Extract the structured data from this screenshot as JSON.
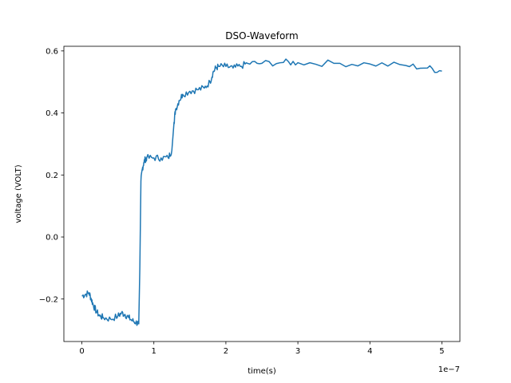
{
  "chart_data": {
    "type": "line",
    "title": "DSO-Waveform",
    "xlabel": "time(s)",
    "ylabel": "voltage (VOLT)",
    "x_offset_text": "1e−7",
    "xlim": [
      -2.5e-08,
      5.25e-07
    ],
    "ylim": [
      -0.337,
      0.615
    ],
    "xticks": [
      0,
      1e-07,
      2e-07,
      3e-07,
      4e-07,
      5e-07
    ],
    "xtick_labels": [
      "0",
      "1",
      "2",
      "3",
      "4",
      "5"
    ],
    "yticks": [
      -0.2,
      0.0,
      0.2,
      0.4,
      0.6
    ],
    "ytick_labels": [
      "−0.2",
      "0.0",
      "0.2",
      "0.4",
      "0.6"
    ],
    "grid": false,
    "series": [
      {
        "color": "#1f77b4",
        "x": [
          0,
          5e-09,
          1e-08,
          1.3e-08,
          1.6e-08,
          2e-08,
          2.5e-08,
          3e-08,
          4e-08,
          5e-08,
          5.5e-08,
          6e-08,
          6.5e-08,
          7e-08,
          7.5e-08,
          7.9e-08,
          8.05e-08,
          8.2e-08,
          8.4e-08,
          8.6e-08,
          8.8e-08,
          9e-08,
          1e-07,
          1.1e-07,
          1.2e-07,
          1.25e-07,
          1.28e-07,
          1.3e-07,
          1.35e-07,
          1.4e-07,
          1.5e-07,
          1.6e-07,
          1.7e-07,
          1.78e-07,
          1.82e-07,
          1.86e-07,
          1.9e-07,
          2e-07,
          2.1e-07,
          2.2e-07,
          2.3e-07,
          2.5e-07,
          2.8e-07,
          3e-07,
          3.5e-07,
          4e-07,
          4.5e-07,
          4.8e-07,
          5e-07
        ],
        "y": [
          -0.19,
          -0.185,
          -0.18,
          -0.2,
          -0.22,
          -0.24,
          -0.255,
          -0.26,
          -0.265,
          -0.255,
          -0.245,
          -0.25,
          -0.26,
          -0.27,
          -0.275,
          -0.28,
          -0.1,
          0.18,
          0.22,
          0.24,
          0.25,
          0.255,
          0.255,
          0.255,
          0.255,
          0.28,
          0.37,
          0.41,
          0.44,
          0.46,
          0.47,
          0.475,
          0.48,
          0.5,
          0.53,
          0.545,
          0.55,
          0.55,
          0.545,
          0.55,
          0.56,
          0.56,
          0.563,
          0.562,
          0.56,
          0.558,
          0.553,
          0.545,
          0.535
        ]
      }
    ]
  }
}
